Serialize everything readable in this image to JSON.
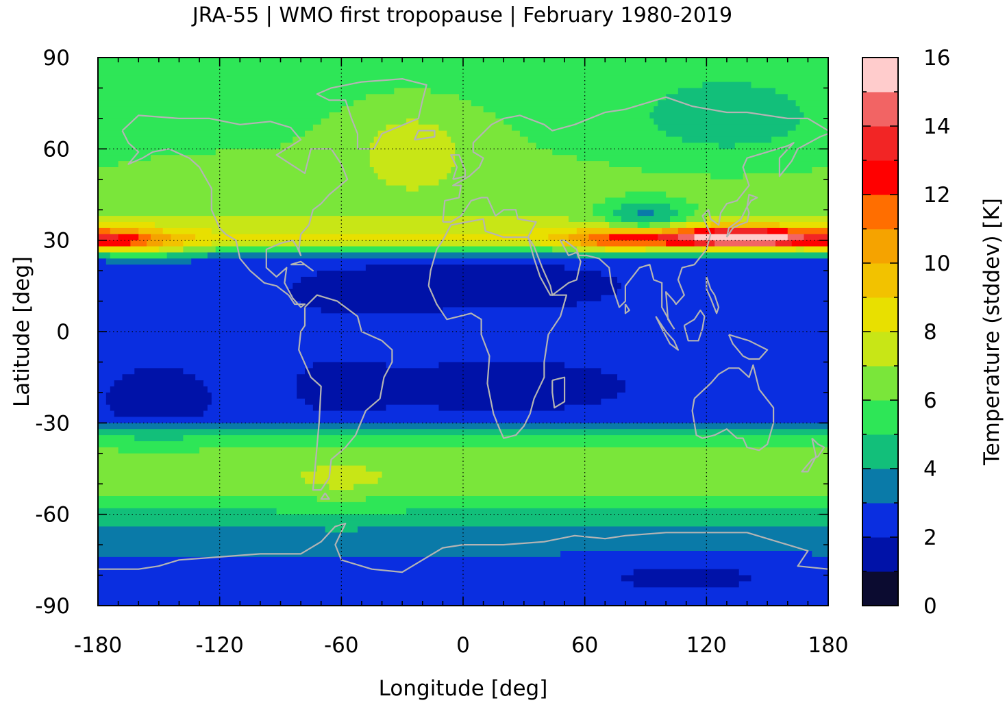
{
  "chart_data": {
    "type": "heatmap",
    "title": "JRA-55 | WMO first tropopause | February 1980-2019",
    "xlabel": "Longitude [deg]",
    "ylabel": "Latitude [deg]",
    "xlim": [
      -180,
      180
    ],
    "ylim": [
      -90,
      90
    ],
    "xticks": [
      -180,
      -120,
      -60,
      0,
      60,
      120,
      180
    ],
    "yticks": [
      90,
      60,
      30,
      0,
      -30,
      -60,
      -90
    ],
    "grid": true,
    "colorbar": {
      "label": "Temperature (stddev) [K]",
      "range": [
        0,
        16
      ],
      "ticks": [
        0,
        2,
        4,
        6,
        8,
        10,
        12,
        14,
        16
      ],
      "levels": [
        {
          "from": 0,
          "to": 1,
          "color": "#0b0b30"
        },
        {
          "from": 1,
          "to": 2,
          "color": "#0012a8"
        },
        {
          "from": 2,
          "to": 3,
          "color": "#0a2ee0"
        },
        {
          "from": 3,
          "to": 4,
          "color": "#0a7aa8"
        },
        {
          "from": 4,
          "to": 5,
          "color": "#12bf7a"
        },
        {
          "from": 5,
          "to": 6,
          "color": "#2ee657"
        },
        {
          "from": 6,
          "to": 7,
          "color": "#7ae63a"
        },
        {
          "from": 7,
          "to": 8,
          "color": "#c8e616"
        },
        {
          "from": 8,
          "to": 9,
          "color": "#e8e000"
        },
        {
          "from": 9,
          "to": 10,
          "color": "#f2c200"
        },
        {
          "from": 10,
          "to": 11,
          "color": "#f5a300"
        },
        {
          "from": 11,
          "to": 12,
          "color": "#ff6e00"
        },
        {
          "from": 12,
          "to": 13,
          "color": "#ff0000"
        },
        {
          "from": 13,
          "to": 14,
          "color": "#f22525"
        },
        {
          "from": 14,
          "to": 15,
          "color": "#f26464"
        },
        {
          "from": 15,
          "to": 16,
          "color": "#ffcccc"
        }
      ]
    },
    "field_description": "tropics ~2-3 K, subtropical jet band ~30N with maxima 10-16 K near 120-160E and 170E-180, mid-latitudes 4-7 K",
    "regions": [
      {
        "lat": 30,
        "lon": 145,
        "value": 15.5
      },
      {
        "lat": 31,
        "lon": 115,
        "value": 12.5
      },
      {
        "lat": 30,
        "lon": -172,
        "value": 11.5
      },
      {
        "lat": 29,
        "lon": 70,
        "value": 11.5
      },
      {
        "lat": 28,
        "lon": -150,
        "value": 10.5
      },
      {
        "lat": 15,
        "lon": 30,
        "value": 1.5
      },
      {
        "lat": -18,
        "lon": 20,
        "value": 1.5
      },
      {
        "lat": -80,
        "lon": 110,
        "value": 1.5
      },
      {
        "lat": 37,
        "lon": 90,
        "value": 3.5
      },
      {
        "lat": 68,
        "lon": 130,
        "value": 4.5
      },
      {
        "lat": 65,
        "lon": -25,
        "value": 7.5
      },
      {
        "lat": -50,
        "lon": -60,
        "value": 6.5
      },
      {
        "lat": -68,
        "lon": 0,
        "value": 3.5
      }
    ]
  },
  "coastline_color": "#b4b4b4"
}
